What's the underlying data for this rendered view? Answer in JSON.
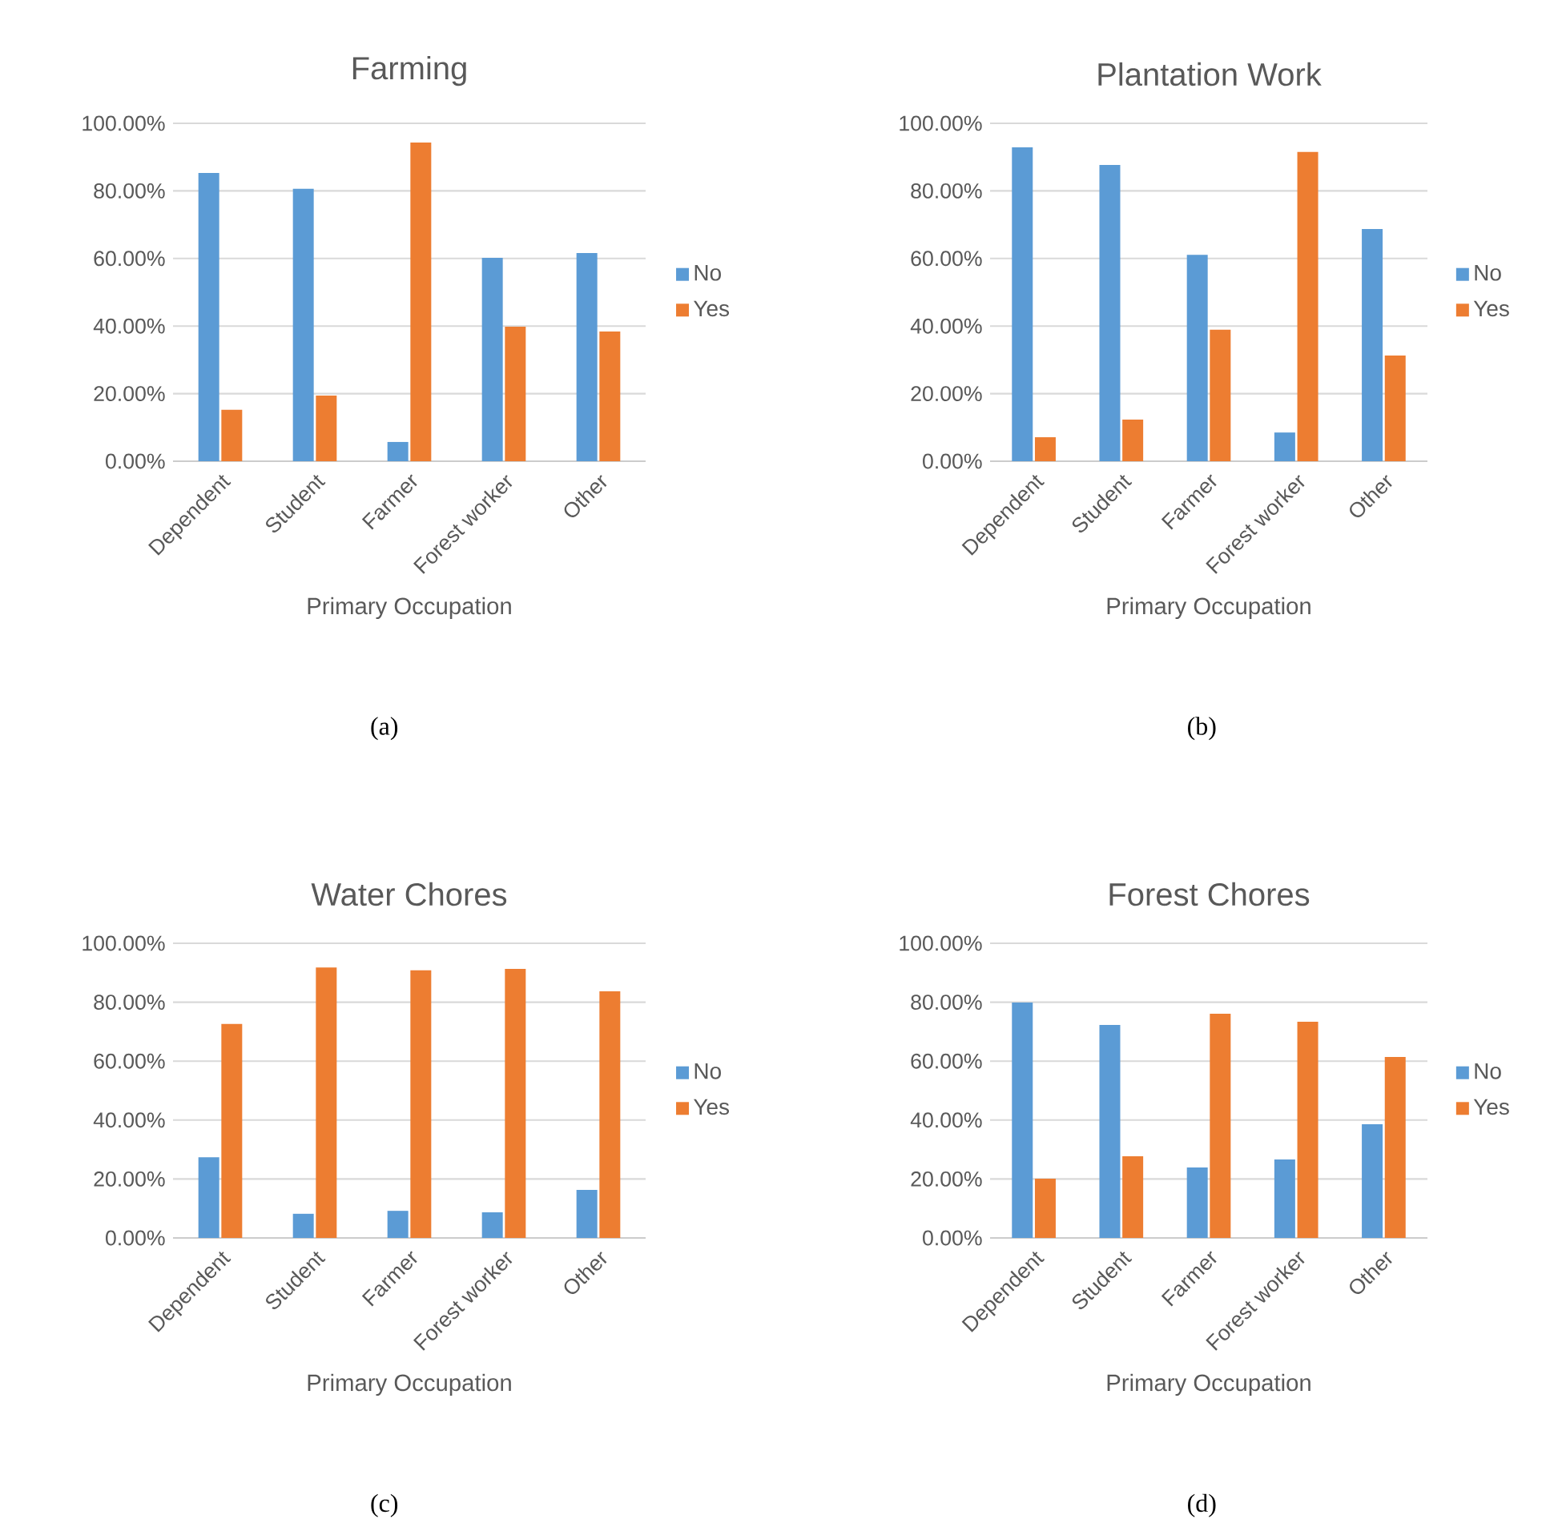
{
  "chart_data": [
    {
      "type": "bar",
      "title": "Farming",
      "xlabel": "Primary Occupation",
      "categories": [
        "Dependent",
        "Student",
        "Farmer",
        "Forest worker",
        "Other"
      ],
      "series": [
        {
          "name": "No",
          "color": "#5b9bd5",
          "values": [
            85.3,
            80.6,
            5.7,
            60.2,
            61.6
          ]
        },
        {
          "name": "Yes",
          "color": "#ed7d31",
          "values": [
            15.2,
            19.4,
            94.3,
            39.8,
            38.4
          ]
        }
      ],
      "ylim": [
        0,
        100
      ],
      "yticks": [
        {
          "value": 0,
          "label": "0.00%"
        },
        {
          "value": 20,
          "label": "20.00%"
        },
        {
          "value": 40,
          "label": "40.00%"
        },
        {
          "value": 60,
          "label": "60.00%"
        },
        {
          "value": 80,
          "label": "80.00%"
        },
        {
          "value": 100,
          "label": "100.00%"
        }
      ],
      "grid": "y",
      "legend": "right",
      "annotations": [
        "(a)"
      ]
    },
    {
      "type": "bar",
      "title": "Plantation Work",
      "xlabel": "Primary Occupation",
      "categories": [
        "Dependent",
        "Student",
        "Farmer",
        "Forest worker",
        "Other"
      ],
      "series": [
        {
          "name": "No",
          "color": "#5b9bd5",
          "values": [
            92.9,
            87.7,
            61.1,
            8.5,
            68.7
          ]
        },
        {
          "name": "Yes",
          "color": "#ed7d31",
          "values": [
            7.1,
            12.3,
            38.9,
            91.5,
            31.3
          ]
        }
      ],
      "ylim": [
        0,
        100
      ],
      "yticks": [
        {
          "value": 0,
          "label": "0.00%"
        },
        {
          "value": 20,
          "label": "20.00%"
        },
        {
          "value": 40,
          "label": "40.00%"
        },
        {
          "value": 60,
          "label": "60.00%"
        },
        {
          "value": 80,
          "label": "80.00%"
        },
        {
          "value": 100,
          "label": "100.00%"
        }
      ],
      "grid": "y",
      "legend": "right",
      "annotations": [
        "(b)"
      ]
    },
    {
      "type": "bar",
      "title": "Water Chores",
      "xlabel": "Primary Occupation",
      "categories": [
        "Dependent",
        "Student",
        "Farmer",
        "Forest worker",
        "Other"
      ],
      "series": [
        {
          "name": "No",
          "color": "#5b9bd5",
          "values": [
            27.4,
            8.2,
            9.2,
            8.7,
            16.3
          ]
        },
        {
          "name": "Yes",
          "color": "#ed7d31",
          "values": [
            72.6,
            91.8,
            90.8,
            91.3,
            83.7
          ]
        }
      ],
      "ylim": [
        0,
        100
      ],
      "yticks": [
        {
          "value": 0,
          "label": "0.00%"
        },
        {
          "value": 20,
          "label": "20.00%"
        },
        {
          "value": 40,
          "label": "40.00%"
        },
        {
          "value": 60,
          "label": "60.00%"
        },
        {
          "value": 80,
          "label": "80.00%"
        },
        {
          "value": 100,
          "label": "100.00%"
        }
      ],
      "grid": "y",
      "legend": "right",
      "annotations": [
        "(c)"
      ]
    },
    {
      "type": "bar",
      "title": "Forest Chores",
      "xlabel": "Primary Occupation",
      "categories": [
        "Dependent",
        "Student",
        "Farmer",
        "Forest worker",
        "Other"
      ],
      "series": [
        {
          "name": "No",
          "color": "#5b9bd5",
          "values": [
            79.9,
            72.3,
            23.9,
            26.6,
            38.6
          ]
        },
        {
          "name": "Yes",
          "color": "#ed7d31",
          "values": [
            20.1,
            27.7,
            76.1,
            73.4,
            61.4
          ]
        }
      ],
      "ylim": [
        0,
        100
      ],
      "yticks": [
        {
          "value": 0,
          "label": "0.00%"
        },
        {
          "value": 20,
          "label": "20.00%"
        },
        {
          "value": 40,
          "label": "40.00%"
        },
        {
          "value": 60,
          "label": "60.00%"
        },
        {
          "value": 80,
          "label": "80.00%"
        },
        {
          "value": 100,
          "label": "100.00%"
        }
      ],
      "grid": "y",
      "legend": "right",
      "annotations": [
        "(d)"
      ]
    }
  ]
}
